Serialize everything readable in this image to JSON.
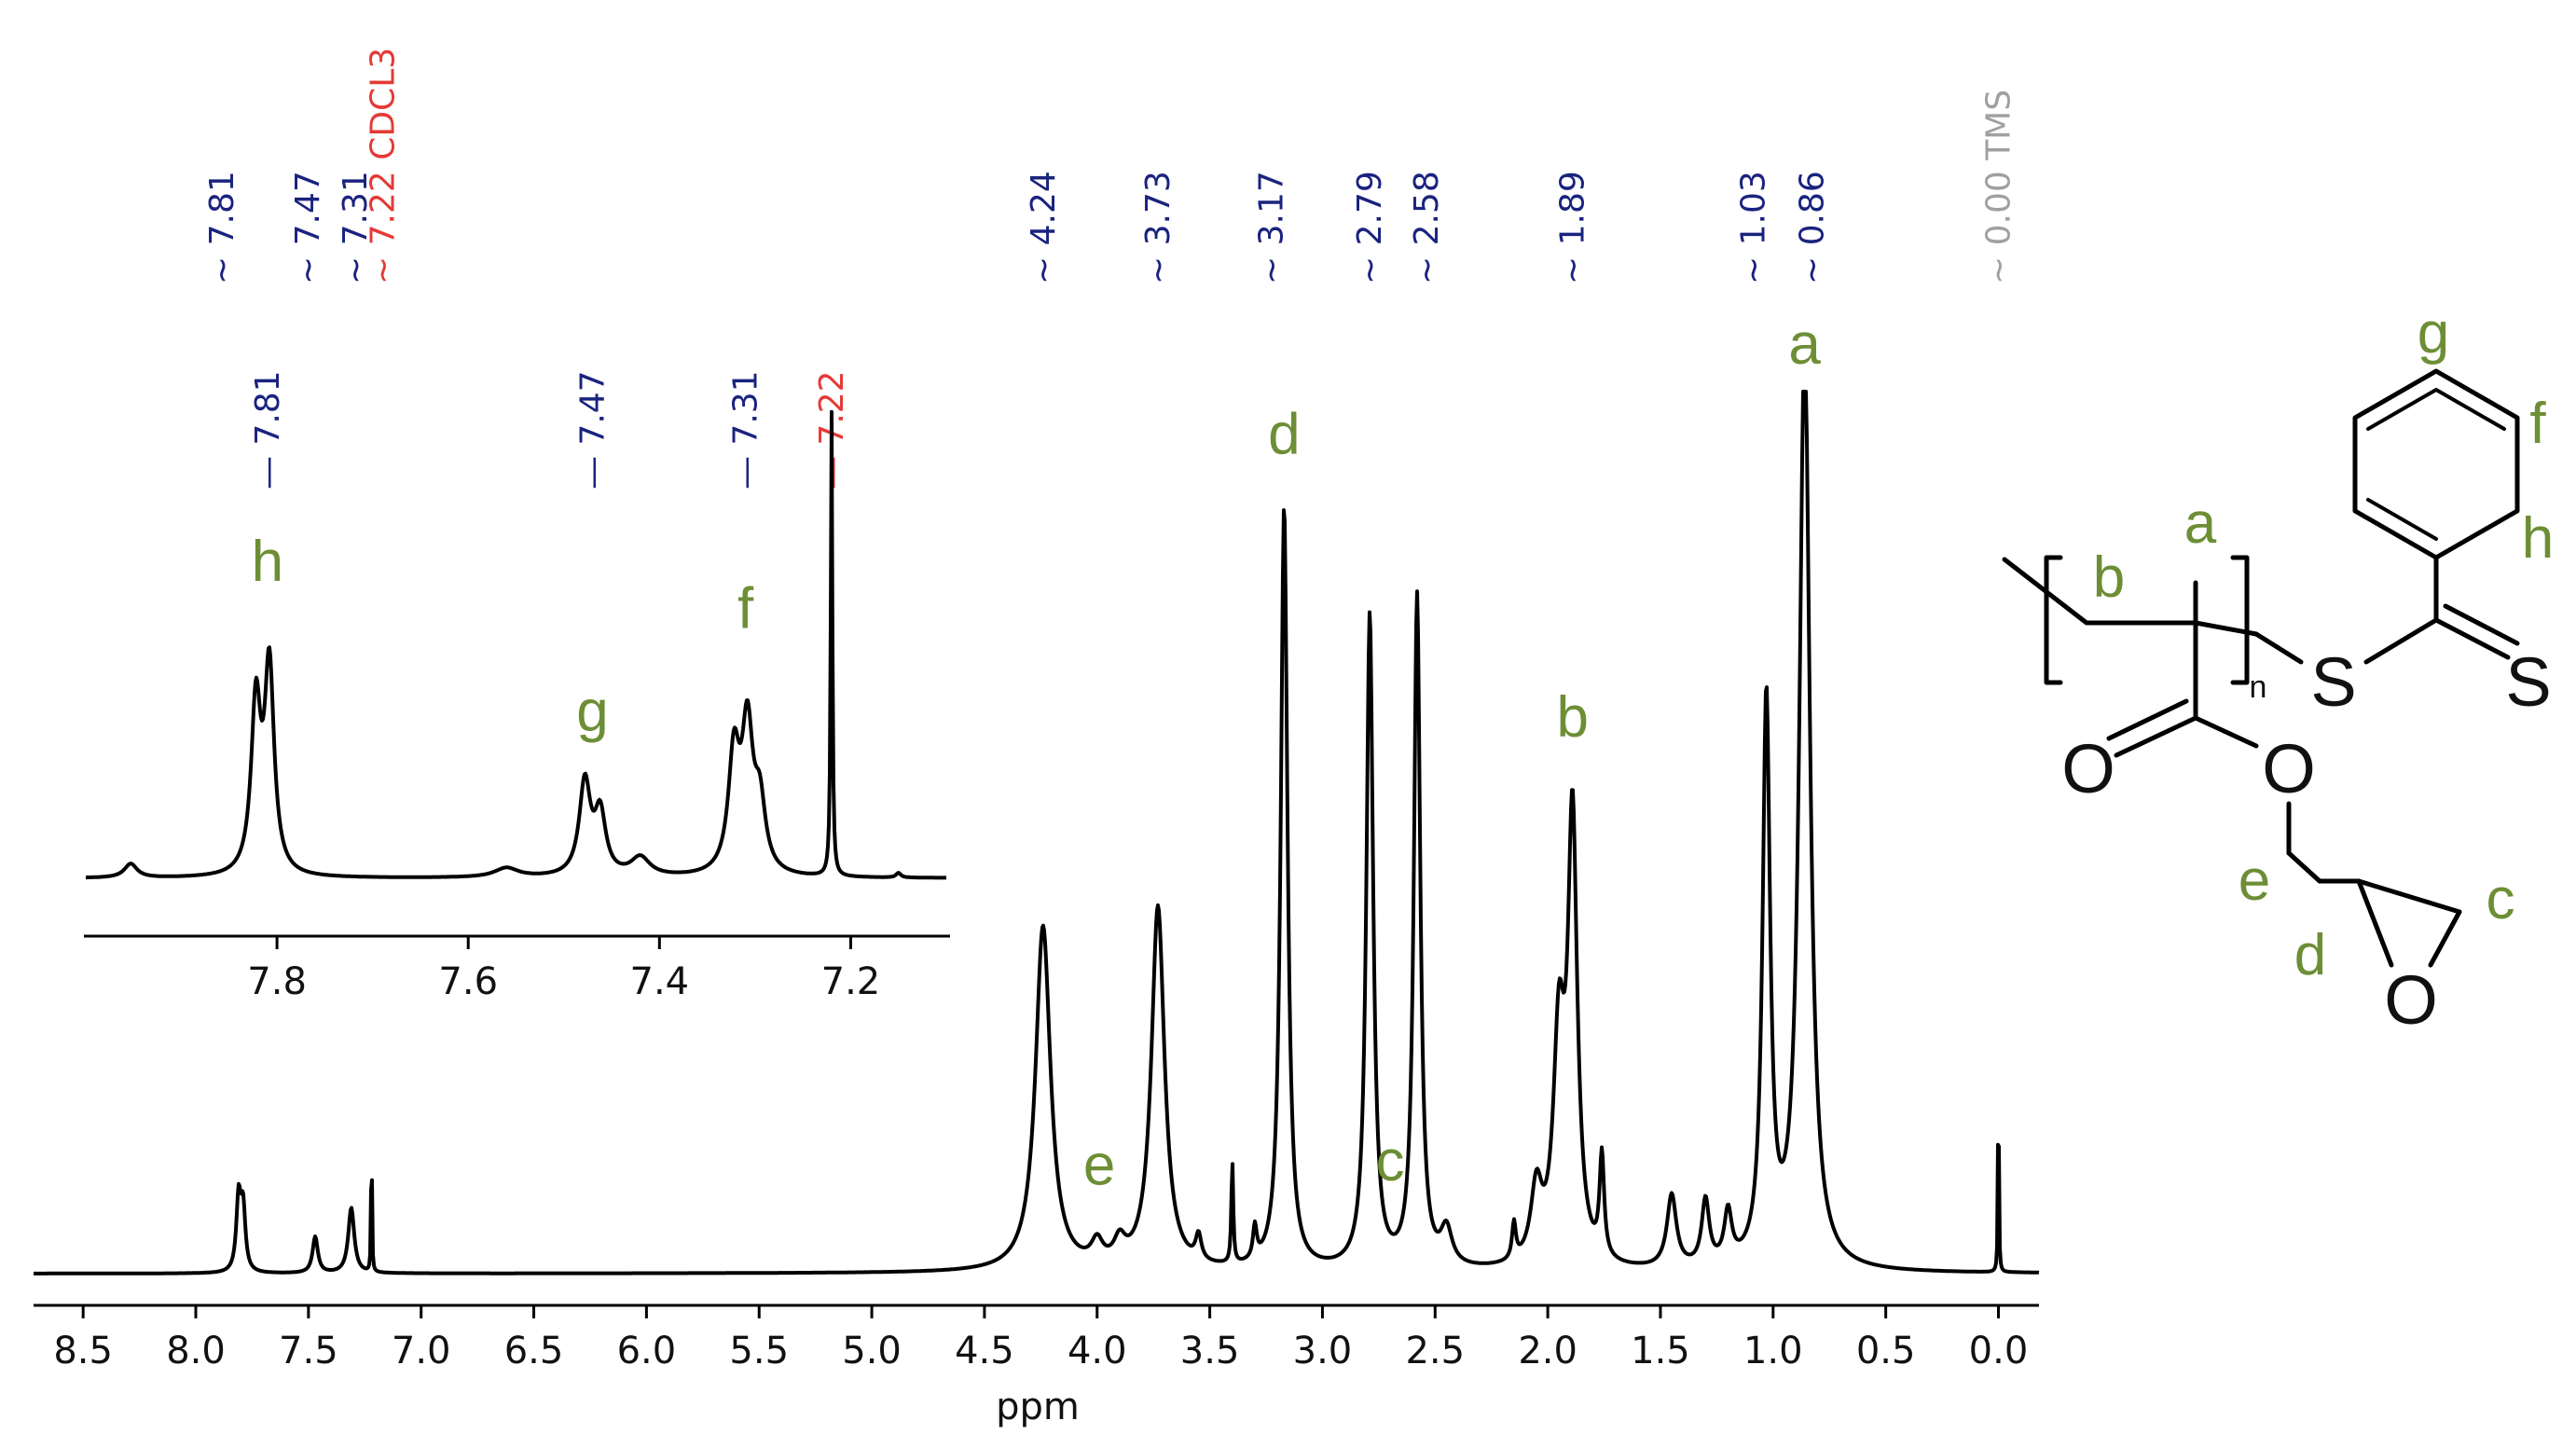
{
  "chart_data": [
    {
      "type": "line",
      "xlabel": "ppm",
      "xlim": [
        8.72,
        -0.18
      ],
      "x_reversed": true,
      "x_ticks": [
        "8.5",
        "8.0",
        "7.5",
        "7.0",
        "6.5",
        "6.0",
        "5.5",
        "5.0",
        "4.5",
        "4.0",
        "3.5",
        "3.0",
        "2.5",
        "2.0",
        "1.5",
        "1.0",
        "0.5",
        "0.0"
      ],
      "x_tick_values": [
        8.5,
        8.0,
        7.5,
        7.0,
        6.5,
        6.0,
        5.5,
        5.0,
        4.5,
        4.0,
        3.5,
        3.0,
        2.5,
        2.0,
        1.5,
        1.0,
        0.5,
        0.0
      ],
      "peak_labels": [
        {
          "ppm": 7.81,
          "text": "7.81",
          "color": "#1a237e"
        },
        {
          "ppm": 7.47,
          "text": "7.47",
          "color": "#1a237e"
        },
        {
          "ppm": 7.31,
          "text": "7.31",
          "color": "#1a237e"
        },
        {
          "ppm": 7.22,
          "text": "7.22 CDCL3",
          "color": "#e53935"
        },
        {
          "ppm": 4.24,
          "text": "4.24",
          "color": "#1a237e"
        },
        {
          "ppm": 3.73,
          "text": "3.73",
          "color": "#1a237e"
        },
        {
          "ppm": 3.17,
          "text": "3.17",
          "color": "#1a237e"
        },
        {
          "ppm": 2.79,
          "text": "2.79",
          "color": "#1a237e"
        },
        {
          "ppm": 2.58,
          "text": "2.58",
          "color": "#1a237e"
        },
        {
          "ppm": 1.89,
          "text": "1.89",
          "color": "#1a237e"
        },
        {
          "ppm": 1.03,
          "text": "1.03",
          "color": "#1a237e"
        },
        {
          "ppm": 0.86,
          "text": "0.86",
          "color": "#1a237e"
        },
        {
          "ppm": 0.0,
          "text": "0.00 TMS",
          "color": "#a0a0a0"
        }
      ],
      "assignments": [
        {
          "letter": "a",
          "ppm": 0.86
        },
        {
          "letter": "b",
          "ppm": 1.89
        },
        {
          "letter": "c",
          "ppm": 2.7
        },
        {
          "letter": "d",
          "ppm": 3.17
        },
        {
          "letter": "e",
          "ppm": 3.99
        }
      ],
      "peaks": [
        {
          "ppm": 7.81,
          "height": 0.2,
          "width": 0.012
        },
        {
          "ppm": 7.79,
          "height": 0.17,
          "width": 0.012
        },
        {
          "ppm": 7.47,
          "height": 0.1,
          "width": 0.014
        },
        {
          "ppm": 7.31,
          "height": 0.18,
          "width": 0.016
        },
        {
          "ppm": 7.22,
          "height": 0.49,
          "width": 0.002
        },
        {
          "ppm": 4.24,
          "height": 0.95,
          "width": 0.04
        },
        {
          "ppm": 4.0,
          "height": 0.06,
          "width": 0.03
        },
        {
          "ppm": 3.9,
          "height": 0.06,
          "width": 0.03
        },
        {
          "ppm": 3.73,
          "height": 1.0,
          "width": 0.035
        },
        {
          "ppm": 3.55,
          "height": 0.07,
          "width": 0.015
        },
        {
          "ppm": 3.4,
          "height": 0.28,
          "width": 0.005
        },
        {
          "ppm": 3.3,
          "height": 0.09,
          "width": 0.01
        },
        {
          "ppm": 3.17,
          "height": 2.1,
          "width": 0.018
        },
        {
          "ppm": 2.79,
          "height": 1.8,
          "width": 0.018
        },
        {
          "ppm": 2.58,
          "height": 1.85,
          "width": 0.017
        },
        {
          "ppm": 2.45,
          "height": 0.1,
          "width": 0.03
        },
        {
          "ppm": 2.15,
          "height": 0.1,
          "width": 0.01
        },
        {
          "ppm": 2.05,
          "height": 0.2,
          "width": 0.03
        },
        {
          "ppm": 1.95,
          "height": 0.6,
          "width": 0.03
        },
        {
          "ppm": 1.89,
          "height": 1.2,
          "width": 0.025
        },
        {
          "ppm": 1.76,
          "height": 0.28,
          "width": 0.012
        },
        {
          "ppm": 1.45,
          "height": 0.2,
          "width": 0.025
        },
        {
          "ppm": 1.3,
          "height": 0.18,
          "width": 0.02
        },
        {
          "ppm": 1.2,
          "height": 0.14,
          "width": 0.02
        },
        {
          "ppm": 1.03,
          "height": 1.55,
          "width": 0.02
        },
        {
          "ppm": 0.86,
          "height": 2.55,
          "width": 0.028
        },
        {
          "ppm": 0.0,
          "height": 0.72,
          "width": 0.002
        }
      ]
    },
    {
      "type": "line",
      "xlim": [
        8.0,
        7.1
      ],
      "x_reversed": true,
      "x_ticks": [
        "7.8",
        "7.6",
        "7.4",
        "7.2"
      ],
      "x_tick_values": [
        7.8,
        7.6,
        7.4,
        7.2
      ],
      "peak_labels": [
        {
          "ppm": 7.81,
          "text": "7.81",
          "color": "#1a237e"
        },
        {
          "ppm": 7.47,
          "text": "7.47",
          "color": "#1a237e"
        },
        {
          "ppm": 7.31,
          "text": "7.31",
          "color": "#1a237e"
        },
        {
          "ppm": 7.22,
          "text": "7.22",
          "color": "#e53935"
        }
      ],
      "assignments": [
        {
          "letter": "h",
          "ppm": 7.81
        },
        {
          "letter": "g",
          "ppm": 7.47
        },
        {
          "letter": "f",
          "ppm": 7.31
        }
      ],
      "peaks": [
        {
          "ppm": 7.953,
          "height": 0.03,
          "width": 0.008
        },
        {
          "ppm": 7.822,
          "height": 0.36,
          "width": 0.006
        },
        {
          "ppm": 7.808,
          "height": 0.44,
          "width": 0.006
        },
        {
          "ppm": 7.56,
          "height": 0.02,
          "width": 0.015
        },
        {
          "ppm": 7.478,
          "height": 0.2,
          "width": 0.007
        },
        {
          "ppm": 7.462,
          "height": 0.13,
          "width": 0.007
        },
        {
          "ppm": 7.42,
          "height": 0.04,
          "width": 0.012
        },
        {
          "ppm": 7.322,
          "height": 0.25,
          "width": 0.007
        },
        {
          "ppm": 7.308,
          "height": 0.3,
          "width": 0.007
        },
        {
          "ppm": 7.295,
          "height": 0.14,
          "width": 0.007
        },
        {
          "ppm": 7.22,
          "height": 1.0,
          "width": 0.001
        },
        {
          "ppm": 7.15,
          "height": 0.01,
          "width": 0.003
        }
      ]
    }
  ],
  "structure": {
    "atoms": [
      "S",
      "S",
      "O",
      "O",
      "O"
    ],
    "subscript": "n",
    "labels": [
      "g",
      "f",
      "h",
      "a",
      "b",
      "e",
      "c",
      "d"
    ]
  }
}
